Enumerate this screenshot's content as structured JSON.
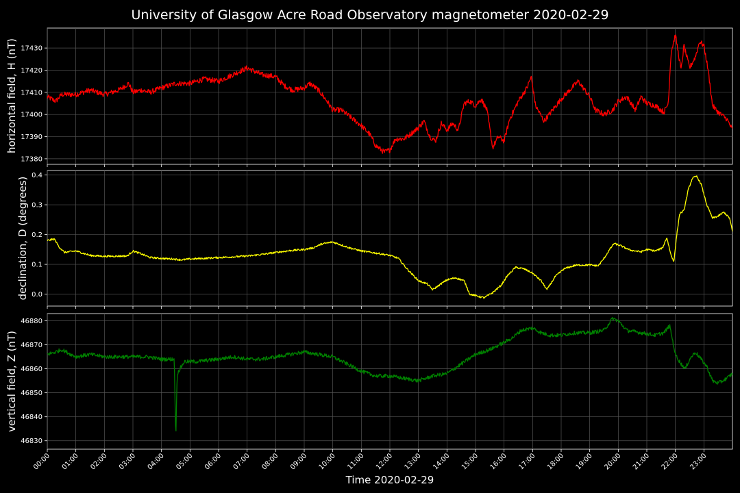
{
  "chart_data": {
    "type": "line",
    "title": "University of Glasgow Acre Road Observatory magnetometer 2020-02-29",
    "xlabel": "Time 2020-02-29",
    "xlim_hours": [
      0,
      24
    ],
    "x_tick_labels": [
      "00:00",
      "01:00",
      "02:00",
      "03:00",
      "04:00",
      "05:00",
      "06:00",
      "07:00",
      "08:00",
      "09:00",
      "10:00",
      "11:00",
      "12:00",
      "13:00",
      "14:00",
      "15:00",
      "16:00",
      "17:00",
      "18:00",
      "19:00",
      "20:00",
      "21:00",
      "22:00",
      "23:00"
    ],
    "grid": true,
    "panels": [
      {
        "name": "H",
        "ylabel": "horizontal field, H (nT)",
        "color": "#ff0000",
        "ylim": [
          17377.5,
          17439
        ],
        "yticks": [
          17380,
          17390,
          17400,
          17410,
          17420,
          17430
        ],
        "noise": 1.2,
        "points": [
          [
            0,
            17408
          ],
          [
            0.3,
            17406
          ],
          [
            0.5,
            17409
          ],
          [
            1,
            17409
          ],
          [
            1.5,
            17411
          ],
          [
            2,
            17409
          ],
          [
            2.5,
            17411
          ],
          [
            2.85,
            17414
          ],
          [
            3,
            17410
          ],
          [
            3.3,
            17411
          ],
          [
            3.6,
            17410
          ],
          [
            4,
            17412
          ],
          [
            4.5,
            17414
          ],
          [
            5,
            17414
          ],
          [
            5.5,
            17416
          ],
          [
            6,
            17415
          ],
          [
            6.5,
            17418
          ],
          [
            7,
            17421
          ],
          [
            7.5,
            17418
          ],
          [
            8,
            17417
          ],
          [
            8.3,
            17413
          ],
          [
            8.6,
            17411
          ],
          [
            9,
            17412
          ],
          [
            9.2,
            17414
          ],
          [
            9.5,
            17411
          ],
          [
            9.8,
            17406
          ],
          [
            10,
            17402
          ],
          [
            10.3,
            17402
          ],
          [
            10.6,
            17399
          ],
          [
            11,
            17395
          ],
          [
            11.3,
            17391
          ],
          [
            11.5,
            17386
          ],
          [
            11.8,
            17383
          ],
          [
            12,
            17384
          ],
          [
            12.2,
            17389
          ],
          [
            12.5,
            17389
          ],
          [
            12.8,
            17392
          ],
          [
            13,
            17394
          ],
          [
            13.2,
            17397
          ],
          [
            13.4,
            17390
          ],
          [
            13.6,
            17388
          ],
          [
            13.8,
            17396
          ],
          [
            14,
            17393
          ],
          [
            14.2,
            17396
          ],
          [
            14.4,
            17393
          ],
          [
            14.6,
            17405
          ],
          [
            14.8,
            17406
          ],
          [
            15,
            17404
          ],
          [
            15.2,
            17407
          ],
          [
            15.4,
            17402
          ],
          [
            15.6,
            17385
          ],
          [
            15.8,
            17390
          ],
          [
            16,
            17388
          ],
          [
            16.2,
            17398
          ],
          [
            16.5,
            17406
          ],
          [
            16.8,
            17412
          ],
          [
            16.95,
            17417
          ],
          [
            17.1,
            17404
          ],
          [
            17.4,
            17397
          ],
          [
            17.7,
            17402
          ],
          [
            18,
            17407
          ],
          [
            18.3,
            17411
          ],
          [
            18.6,
            17415
          ],
          [
            19,
            17408
          ],
          [
            19.2,
            17402
          ],
          [
            19.5,
            17400
          ],
          [
            19.8,
            17402
          ],
          [
            20,
            17406
          ],
          [
            20.3,
            17408
          ],
          [
            20.6,
            17402
          ],
          [
            20.8,
            17408
          ],
          [
            21,
            17405
          ],
          [
            21.3,
            17404
          ],
          [
            21.6,
            17401
          ],
          [
            21.75,
            17405
          ],
          [
            21.85,
            17428
          ],
          [
            22,
            17436
          ],
          [
            22.2,
            17420
          ],
          [
            22.3,
            17431
          ],
          [
            22.5,
            17421
          ],
          [
            22.7,
            17426
          ],
          [
            22.85,
            17433
          ],
          [
            23,
            17431
          ],
          [
            23.15,
            17420
          ],
          [
            23.3,
            17404
          ],
          [
            23.5,
            17401
          ],
          [
            23.8,
            17398
          ],
          [
            24,
            17393
          ]
        ]
      },
      {
        "name": "D",
        "ylabel": "declination, D (degrees)",
        "color": "#ffff00",
        "ylim": [
          -0.04,
          0.415
        ],
        "yticks": [
          0.0,
          0.1,
          0.2,
          0.3,
          0.4
        ],
        "noise": 0.003,
        "points": [
          [
            0,
            0.18
          ],
          [
            0.25,
            0.185
          ],
          [
            0.4,
            0.16
          ],
          [
            0.6,
            0.14
          ],
          [
            1,
            0.145
          ],
          [
            1.5,
            0.13
          ],
          [
            2,
            0.127
          ],
          [
            2.8,
            0.128
          ],
          [
            3,
            0.145
          ],
          [
            3.3,
            0.135
          ],
          [
            3.6,
            0.123
          ],
          [
            4,
            0.12
          ],
          [
            4.4,
            0.118
          ],
          [
            4.7,
            0.115
          ],
          [
            5,
            0.118
          ],
          [
            5.5,
            0.12
          ],
          [
            6,
            0.123
          ],
          [
            6.5,
            0.125
          ],
          [
            7,
            0.128
          ],
          [
            7.5,
            0.133
          ],
          [
            8,
            0.14
          ],
          [
            8.5,
            0.146
          ],
          [
            9,
            0.15
          ],
          [
            9.3,
            0.155
          ],
          [
            9.6,
            0.168
          ],
          [
            10,
            0.175
          ],
          [
            10.3,
            0.165
          ],
          [
            10.6,
            0.155
          ],
          [
            11,
            0.145
          ],
          [
            11.5,
            0.138
          ],
          [
            12,
            0.13
          ],
          [
            12.3,
            0.12
          ],
          [
            12.6,
            0.085
          ],
          [
            13,
            0.045
          ],
          [
            13.3,
            0.035
          ],
          [
            13.5,
            0.015
          ],
          [
            13.8,
            0.035
          ],
          [
            14,
            0.048
          ],
          [
            14.3,
            0.055
          ],
          [
            14.6,
            0.045
          ],
          [
            14.8,
            0.0
          ],
          [
            15,
            -0.005
          ],
          [
            15.3,
            -0.012
          ],
          [
            15.6,
            0.005
          ],
          [
            15.9,
            0.03
          ],
          [
            16.1,
            0.06
          ],
          [
            16.4,
            0.09
          ],
          [
            16.7,
            0.085
          ],
          [
            17,
            0.07
          ],
          [
            17.3,
            0.045
          ],
          [
            17.5,
            0.015
          ],
          [
            17.8,
            0.06
          ],
          [
            18.1,
            0.085
          ],
          [
            18.5,
            0.097
          ],
          [
            19,
            0.098
          ],
          [
            19.3,
            0.095
          ],
          [
            19.5,
            0.12
          ],
          [
            19.7,
            0.15
          ],
          [
            19.85,
            0.17
          ],
          [
            20.1,
            0.162
          ],
          [
            20.4,
            0.148
          ],
          [
            20.8,
            0.142
          ],
          [
            21,
            0.15
          ],
          [
            21.3,
            0.145
          ],
          [
            21.55,
            0.155
          ],
          [
            21.7,
            0.19
          ],
          [
            21.85,
            0.13
          ],
          [
            21.95,
            0.11
          ],
          [
            22.05,
            0.2
          ],
          [
            22.15,
            0.27
          ],
          [
            22.3,
            0.28
          ],
          [
            22.45,
            0.35
          ],
          [
            22.6,
            0.39
          ],
          [
            22.75,
            0.395
          ],
          [
            22.9,
            0.37
          ],
          [
            23.1,
            0.3
          ],
          [
            23.3,
            0.255
          ],
          [
            23.5,
            0.262
          ],
          [
            23.7,
            0.275
          ],
          [
            23.9,
            0.255
          ],
          [
            24,
            0.21
          ]
        ]
      },
      {
        "name": "Z",
        "ylabel": "vertical field, Z (nT)",
        "color": "#008000",
        "ylim": [
          46826.5,
          46883
        ],
        "yticks": [
          46830,
          46840,
          46850,
          46860,
          46870,
          46880
        ],
        "noise": 0.8,
        "points": [
          [
            0,
            46866
          ],
          [
            0.3,
            46867
          ],
          [
            0.5,
            46868
          ],
          [
            1,
            46865
          ],
          [
            1.5,
            46866
          ],
          [
            2,
            46865
          ],
          [
            2.5,
            46865
          ],
          [
            3,
            46865
          ],
          [
            3.5,
            46865
          ],
          [
            4,
            46864
          ],
          [
            4.45,
            46864
          ],
          [
            4.5,
            46830
          ],
          [
            4.55,
            46858
          ],
          [
            4.8,
            46863
          ],
          [
            5.2,
            46863
          ],
          [
            6,
            46864
          ],
          [
            6.5,
            46865
          ],
          [
            7,
            46864
          ],
          [
            7.5,
            46864
          ],
          [
            8,
            46865
          ],
          [
            8.5,
            46866
          ],
          [
            9,
            46867
          ],
          [
            9.5,
            46866
          ],
          [
            10,
            46865
          ],
          [
            10.5,
            46862
          ],
          [
            11,
            46859
          ],
          [
            11.5,
            46857
          ],
          [
            12,
            46857
          ],
          [
            12.5,
            46856
          ],
          [
            13,
            46855
          ],
          [
            13.5,
            46857
          ],
          [
            14,
            46858
          ],
          [
            14.5,
            46862
          ],
          [
            15,
            46866
          ],
          [
            15.5,
            46868
          ],
          [
            16,
            46871
          ],
          [
            16.3,
            46873
          ],
          [
            16.6,
            46876
          ],
          [
            17,
            46877
          ],
          [
            17.3,
            46875
          ],
          [
            17.6,
            46874
          ],
          [
            18,
            46874
          ],
          [
            18.5,
            46875
          ],
          [
            19,
            46875
          ],
          [
            19.5,
            46876
          ],
          [
            19.8,
            46881
          ],
          [
            20,
            46880
          ],
          [
            20.3,
            46876
          ],
          [
            20.8,
            46875
          ],
          [
            21.3,
            46874
          ],
          [
            21.6,
            46875
          ],
          [
            21.8,
            46878
          ],
          [
            22,
            46866
          ],
          [
            22.2,
            46862
          ],
          [
            22.35,
            46860
          ],
          [
            22.5,
            46864
          ],
          [
            22.7,
            46867
          ],
          [
            22.9,
            46864
          ],
          [
            23.1,
            46861
          ],
          [
            23.3,
            46855
          ],
          [
            23.5,
            46854
          ],
          [
            23.8,
            46856
          ],
          [
            24,
            46858
          ]
        ]
      }
    ]
  }
}
